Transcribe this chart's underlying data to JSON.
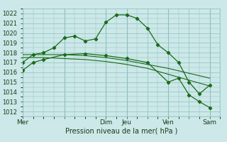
{
  "bg_color": "#cce8e8",
  "grid_color": "#8fbfbf",
  "line_color": "#1a6b1a",
  "title": "Pression niveau de la mer( hPa )",
  "ylim": [
    1011.5,
    1022.5
  ],
  "yticks": [
    1012,
    1013,
    1014,
    1015,
    1016,
    1017,
    1018,
    1019,
    1020,
    1021,
    1022
  ],
  "day_labels": [
    "Mer",
    "",
    "Dim",
    "Jeu",
    "",
    "Ven",
    "",
    "Sam"
  ],
  "day_positions": [
    0,
    2,
    4,
    5,
    6,
    7,
    8,
    9
  ],
  "xlim": [
    0,
    9.5
  ],
  "series1_x": [
    0,
    0.5,
    1,
    1.5,
    2,
    2.5,
    3,
    3.5,
    4,
    4.5,
    5,
    5.5,
    6,
    6.5,
    7,
    7.5,
    8,
    8.5,
    9
  ],
  "series1_y": [
    1017.0,
    1017.8,
    1018.0,
    1018.5,
    1019.5,
    1019.7,
    1019.2,
    1019.4,
    1021.1,
    1021.85,
    1021.85,
    1021.5,
    1020.5,
    1018.8,
    1018.0,
    1017.0,
    1015.0,
    1013.8,
    1014.7
  ],
  "series2_x": [
    0,
    0.5,
    1,
    2,
    3,
    4,
    5,
    6,
    7,
    7.5,
    8,
    8.5,
    9
  ],
  "series2_y": [
    1016.2,
    1017.0,
    1017.3,
    1017.8,
    1017.9,
    1017.7,
    1017.4,
    1017.0,
    1015.0,
    1015.4,
    1013.7,
    1013.0,
    1012.4
  ],
  "series3_x": [
    0,
    1,
    2,
    3,
    4,
    5,
    6,
    7,
    8,
    9
  ],
  "series3_y": [
    1017.8,
    1017.8,
    1017.8,
    1017.7,
    1017.5,
    1017.2,
    1016.8,
    1016.4,
    1015.9,
    1015.4
  ],
  "series4_x": [
    0,
    1,
    2,
    3,
    4,
    5,
    6,
    7,
    8,
    9
  ],
  "series4_y": [
    1017.5,
    1017.5,
    1017.4,
    1017.3,
    1017.1,
    1016.8,
    1016.4,
    1015.8,
    1015.2,
    1014.6
  ],
  "vline_positions": [
    0,
    2,
    4,
    5,
    7,
    9
  ]
}
